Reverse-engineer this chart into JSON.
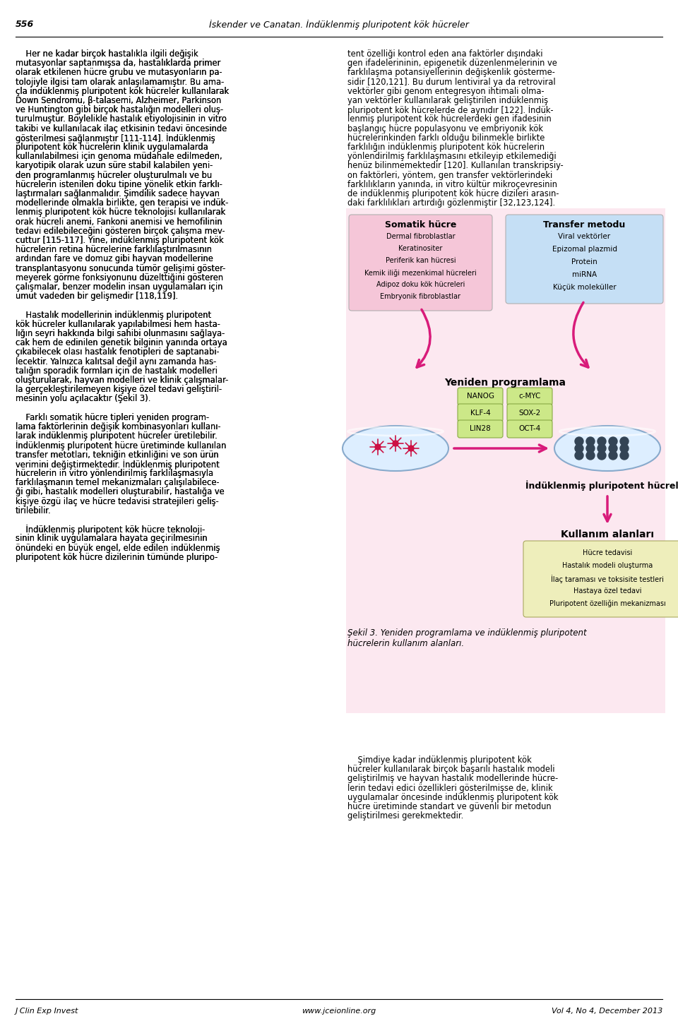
{
  "page_number": "556",
  "header_title": "İskender ve Canatan. İndüklenmiş pluripotent kök hücreler",
  "footer_left": "J Clin Exp Invest",
  "footer_center": "www.jceionline.org",
  "footer_right": "Vol 4, No 4, December 2013",
  "left_col_lines": [
    "    Her ne kadar birçok hastalıkla ilgili değişik",
    "mutasyonlar saptanmışsa da, hastalıklarda primer",
    "olarak etkilenen hücre grubu ve mutasyonların pa-",
    "tolojiyle ilgisi tam olarak anlaşılamamıştır. Bu ama-",
    "çla indüklenmiş pluripotent kök hücreler kullanılarak",
    "Down Sendromu, β-talasemi, Alzheimer, Parkinson",
    "ve Huntington gibi birçok hastalığın modelleri oluş-",
    "turulmuştur. Böylelikle hastalık etiyolojisinin in vitro",
    "takibi ve kullanılacak ilaç etkisinin tedavi öncesinde",
    "gösterilmesi sağlanmıştır [111-114]. İndüklenmiş",
    "pluripotent kök hücrelerin klinik uygulamalarda",
    "kullanılabilmesi için genoma müdahale edilmeden,",
    "karyotipik olarak uzun süre stabil kalabilen yeni-",
    "den programlanmış hücreler oluşturulmalı ve bu",
    "hücrelerin istenilen doku tipine yönelik etkin farklı-",
    "laştırmaları sağlanmalıdır. Şimdilik sadece hayvan",
    "modellerinde olmakla birlikte, gen terapisi ve indük-",
    "lenmiş pluripotent kök hücre teknolojisi kullanılarak",
    "orak hücreli anemi, Fankoni anemisi ve hemofilinin",
    "tedavi edilebileceğini gösteren birçok çalışma mev-",
    "cuttur [115-117]. Yine, indüklenmiş pluripotent kök",
    "hücrelerin retina hücrelerine farklılaştırılmasının",
    "ardından fare ve domuz gibi hayvan modellerine",
    "transplantasyonu sonucunda tümör gelişimi göster-",
    "meyerek görme fonksiyonunu düzelttiğini gösteren",
    "çalışmalar, benzer modelin insan uygulamaları için",
    "umut vadeden bir gelişmedir [118,119].",
    "",
    "    Hastalık modellerinin indüklenmiş pluripotent",
    "kök hücreler kullanılarak yapılabilmesi hem hasta-",
    "lığın seyri hakkında bilgi sahibi olunmasını sağlaya-",
    "cak hem de edinilen genetik bilginin yanında ortaya",
    "çıkabilecek olası hastalık fenotipleri de saptanabi-",
    "lecektir. Yalnızca kalıtsal değil aynı zamanda has-",
    "talığın sporadik formları için de hastalık modelleri",
    "oluşturularak, hayvan modelleri ve klinik çalışmalar-",
    "la gerçekleştirilemeyen kişiye özel tedavi geliştiril-",
    "mesinin yolu açılacaktır (Şekil 3).",
    "",
    "    Farklı somatik hücre tipleri yeniden program-",
    "lama faktörlerinin değişik kombinasyonları kullanı-",
    "larak indüklenmiş pluripotent hücreler üretilebilir.",
    "İndüklenmiş pluripotent hücre üretiminde kullanılan",
    "transfer metotları, tekniğin etkinliğini ve son ürün",
    "verimini değiştirmektedir. İndüklenmiş pluripotent",
    "hücrelerin in vitro yönlendirilmiş farklılaşmasıyla",
    "farklılaşmanın temel mekanizmaları çalışılabilece-",
    "ği gibi, hastalık modelleri oluşturabilir, hastalığa ve",
    "kişiye özgü ilaç ve hücre tedavisi stratejileri geliş-",
    "tirilebilir.",
    "",
    "    İndüklenmiş pluripotent kök hücre teknoloji-",
    "sinin klinik uygulamalara hayata geçirilmesinin",
    "önündeki en büyük engel, elde edilen indüklenmiş",
    "pluripotent kök hücre dizilerinin tümünde pluripo-"
  ],
  "right_col_top_lines": [
    "tent özelliği kontrol eden ana faktörler dışındaki",
    "gen ifadelerininin, epigenetik düzenlenmelerinin ve",
    "farklılaşma potansiyellerinin değişkenlik gösterme-",
    "sidir [120,121]. Bu durum lentiviral ya da retroviral",
    "vektörler gibi genom entegresyon ihtimali olma-",
    "yan vektörler kullanılarak geliştirilen indüklenmiş",
    "pluripotent kök hücrelerde de aynıdır [122]. İndük-",
    "lenmiş pluripotent kök hücrelerdeki gen ifadesinin",
    "başlangıç hücre populasyonu ve embriyonik kök",
    "hücrelerinkinden farklı olduğu bilinmekle birlikte",
    "farklılığın indüklenmiş pluripotent kök hücrelerin",
    "yönlendirilmiş farklılaşmasını etkileyip etkilemediği",
    "henüz bilinmemektedir [120]. Kullanılan transkripsiy-",
    "on faktörleri, yöntem, gen transfer vektörlerindeki",
    "farklılıkların yanında, in vitro kültür mikroçevresinin",
    "de indüklenmiş pluripotent kök hücre dizileri arasın-",
    "daki farklılıkları artırdığı gözlenmiştir [32,123,124]."
  ],
  "right_col_bot_lines": [
    "    Şimdiye kadar indüklenmiş pluripotent kök",
    "hücreler kullanılarak birçok başarılı hastalık modeli",
    "geliştirilmiş ve hayvan hastalık modellerinde hücre-",
    "lerin tedavi edici özellikleri gösterilmişse de, klinik",
    "uygulamalar öncesinde indüklenmiş pluripotent kök",
    "hücre üretiminde standart ve güvenli bir metodun",
    "geliştirilmesi gerekmektedir."
  ],
  "fig_caption_line1": "Şekil 3. Yeniden programlama ve indüklenmiş pluripotent",
  "fig_caption_line2": "hücrelerin kullanım alanları.",
  "somatic_title": "Somatik hücre",
  "somatic_items": [
    "Dermal fibroblastlar",
    "Keratinositer",
    "Periferik kan hücresi",
    "Kemik iliği mezenkimal hücreleri",
    "Adipoz doku kök hücreleri",
    "Embryonik fibroblastlar"
  ],
  "transfer_title": "Transfer metodu",
  "transfer_items": [
    "Viral vektörler",
    "Epizomal plazmid",
    "Protein",
    "miRNA",
    "Küçük moleküller"
  ],
  "reprogram_label": "Yeniden programlama",
  "factors": [
    [
      "NANOG",
      "c-MYC"
    ],
    [
      "KLF-4",
      "SOX-2"
    ],
    [
      "LIN28",
      "OCT-4"
    ]
  ],
  "ipsc_label": "İndüklenmiş pluripotent hücreler",
  "usage_label": "Kullanım alanları",
  "usage_items": [
    "Hücre tedavisi",
    "Hastalık modeli oluşturma",
    "İlaç taraması ve toksisite testleri",
    "Hastaya özel tedavi",
    "Pluripotent özelliğin mekanizması"
  ],
  "bg": "#ffffff",
  "pink": "#d81b7a",
  "somatic_bg": "#f5c6d8",
  "transfer_bg": "#c5dff5",
  "factor_bg": "#cce888",
  "usage_bg": "#eeeebb",
  "diagram_bg": "#fce8f0"
}
